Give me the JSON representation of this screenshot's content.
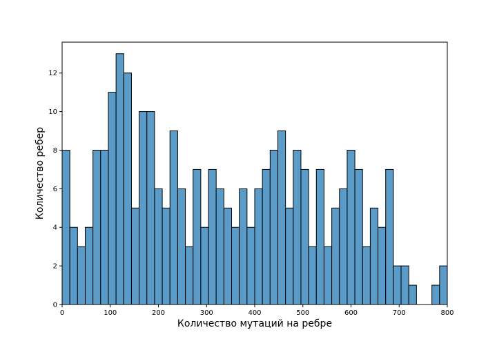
{
  "chart_data": {
    "type": "bar",
    "title": "",
    "xlabel": "Количество мутаций на ребре",
    "ylabel": "Количество ребер",
    "xlim": [
      0,
      800
    ],
    "ylim": [
      0,
      13.6
    ],
    "grid": false,
    "bar_color": "#5b9bc8",
    "edge_color": "#000000",
    "bin_width": 16,
    "bins_start": [
      0,
      16,
      32,
      48,
      64,
      80,
      96,
      112,
      128,
      144,
      160,
      176,
      192,
      208,
      224,
      240,
      256,
      272,
      288,
      304,
      320,
      336,
      352,
      368,
      384,
      400,
      416,
      432,
      448,
      464,
      480,
      496,
      512,
      528,
      544,
      560,
      576,
      592,
      608,
      624,
      640,
      656,
      672,
      688,
      704,
      720,
      736,
      752,
      768,
      784
    ],
    "values": [
      8,
      4,
      3,
      4,
      8,
      8,
      11,
      13,
      12,
      5,
      10,
      10,
      6,
      5,
      9,
      6,
      3,
      7,
      4,
      7,
      6,
      5,
      4,
      6,
      4,
      6,
      7,
      8,
      9,
      5,
      8,
      7,
      3,
      7,
      3,
      5,
      6,
      8,
      7,
      3,
      5,
      4,
      7,
      2,
      2,
      1,
      0,
      0,
      1,
      2
    ],
    "x_ticks": [
      "0",
      "100",
      "200",
      "300",
      "400",
      "500",
      "600",
      "700",
      "800"
    ],
    "y_ticks": [
      "0",
      "2",
      "4",
      "6",
      "8",
      "10",
      "12"
    ]
  }
}
